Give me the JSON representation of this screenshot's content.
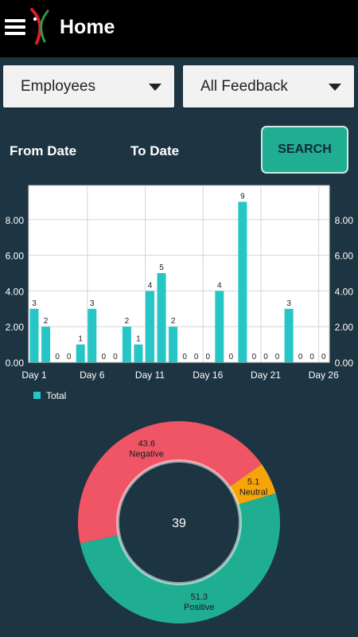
{
  "appbar": {
    "title": "Home",
    "menu_icon": "hamburger-menu-icon",
    "logo_icon": "app-logo-icon"
  },
  "filters": {
    "employee_select": {
      "value": "Employees",
      "icon": "dropdown-caret-icon"
    },
    "feedback_select": {
      "value": "All Feedback",
      "icon": "dropdown-caret-icon"
    }
  },
  "dates": {
    "from_label": "From Date",
    "to_label": "To Date"
  },
  "search_button": {
    "label": "SEARCH",
    "color": "#1fae91"
  },
  "colors": {
    "background": "#1d3442",
    "bar": "#26c6c6",
    "negative": "#ef5565",
    "neutral": "#f5a50a",
    "positive": "#1fae91"
  },
  "chart_data": [
    {
      "type": "bar",
      "x_tick_labels": [
        "Day 1",
        "Day 6",
        "Day 11",
        "Day 16",
        "Day 21",
        "Day 26"
      ],
      "categories": [
        "Day 1",
        "Day 2",
        "Day 3",
        "Day 4",
        "Day 5",
        "Day 6",
        "Day 7",
        "Day 8",
        "Day 9",
        "Day 10",
        "Day 11",
        "Day 12",
        "Day 13",
        "Day 14",
        "Day 15",
        "Day 16",
        "Day 17",
        "Day 18",
        "Day 19",
        "Day 20",
        "Day 21",
        "Day 22",
        "Day 23",
        "Day 24",
        "Day 25",
        "Day 26"
      ],
      "series": [
        {
          "name": "Total",
          "values": [
            3,
            2,
            0,
            0,
            1,
            3,
            0,
            0,
            2,
            1,
            4,
            5,
            2,
            0,
            0,
            0,
            4,
            0,
            9,
            0,
            0,
            0,
            3,
            0,
            0,
            0
          ]
        }
      ],
      "ylim": [
        0,
        10
      ],
      "y_ticks": [
        "0.00",
        "2.00",
        "4.00",
        "6.00",
        "8.00"
      ],
      "grid": true,
      "legend_position": "bottom-left"
    },
    {
      "type": "pie",
      "style": "donut",
      "center_label": "39",
      "slices": [
        {
          "label": "Negative",
          "value": 43.6
        },
        {
          "label": "Neutral",
          "value": 5.1
        },
        {
          "label": "Positive",
          "value": 51.3
        }
      ]
    }
  ]
}
